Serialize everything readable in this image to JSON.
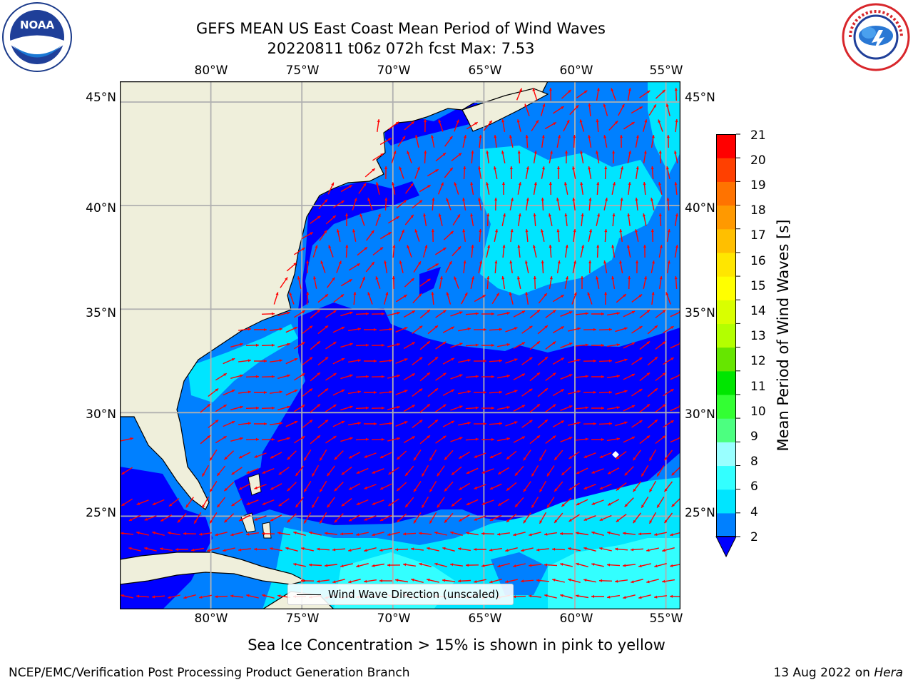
{
  "header": {
    "title_line1": "GEFS MEAN US East Coast Mean Period of Wind Waves",
    "title_line2": "20220811 t06z 072h fcst   Max: 7.53"
  },
  "logos": {
    "left": {
      "icon": "noaa-logo-icon",
      "text": "NOAA"
    },
    "right": {
      "icon": "nws-logo-icon",
      "ring_text": "NATIONAL WEATHER SERVICE"
    }
  },
  "map": {
    "projection": "plate-carree",
    "lon_range": [
      -85,
      -54.2
    ],
    "lat_range": [
      20.5,
      46
    ],
    "lon_ticks": [
      "80°W",
      "75°W",
      "70°W",
      "65°W",
      "60°W",
      "55°W"
    ],
    "lat_ticks": [
      "45°N",
      "40°N",
      "35°N",
      "30°N",
      "25°N"
    ],
    "gridlines": true,
    "legend": {
      "label": "Wind Wave Direction (unscaled)",
      "placement": "bottom-center"
    },
    "arrow_color": "#ff0000",
    "land_color": "#efefdb",
    "coast_color": "#000000"
  },
  "colorbar": {
    "label": "Mean Period of Wind Waves [s]",
    "ticks": [
      "21",
      "20",
      "19",
      "18",
      "17",
      "16",
      "15",
      "14",
      "13",
      "12",
      "11",
      "10",
      "9",
      "8",
      "6",
      "4",
      "2"
    ],
    "colors": [
      "#0000ff",
      "#0080ff",
      "#00e5ff",
      "#33ffff",
      "#99ffff",
      "#4cff80",
      "#33ff33",
      "#00e600",
      "#66e600",
      "#b3ff00",
      "#d9ff00",
      "#ffff00",
      "#ffe600",
      "#ffbf00",
      "#ff9900",
      "#ff7300",
      "#ff4000",
      "#ff0000"
    ],
    "extend": "min"
  },
  "footer": {
    "sea_ice_note": "Sea Ice Concentration > 15% is shown in pink to yellow",
    "branch": "NCEP/EMC/Verification Post Processing Product Generation Branch",
    "date": "13 Aug 2022 on",
    "host": "Hera"
  }
}
